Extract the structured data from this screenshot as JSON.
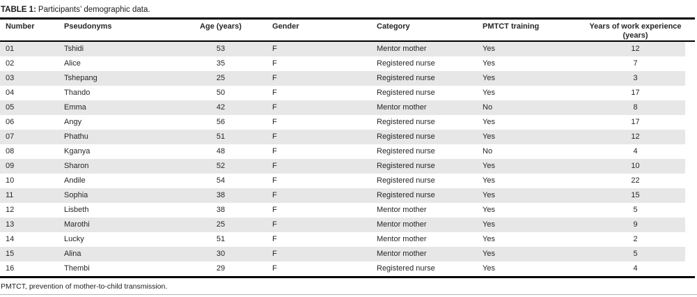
{
  "table": {
    "label": "TABLE 1:",
    "caption": "Participants’ demographic data.",
    "columns": [
      "Number",
      "Pseudonyms",
      "Age (years)",
      "Gender",
      "Category",
      "PMTCT training",
      "Years of work experience (years)"
    ],
    "column_keys": [
      "number",
      "pseudonym",
      "age-years",
      "gender",
      "category",
      "pmtct-training",
      "years-of-work-experience"
    ],
    "rows": [
      [
        "01",
        "Tshidi",
        "53",
        "F",
        "Mentor mother",
        "Yes",
        "12"
      ],
      [
        "02",
        "Alice",
        "35",
        "F",
        "Registered nurse",
        "Yes",
        "7"
      ],
      [
        "03",
        "Tshepang",
        "25",
        "F",
        "Registered nurse",
        "Yes",
        "3"
      ],
      [
        "04",
        "Thando",
        "50",
        "F",
        "Registered nurse",
        "Yes",
        "17"
      ],
      [
        "05",
        "Emma",
        "42",
        "F",
        "Mentor mother",
        "No",
        "8"
      ],
      [
        "06",
        "Angy",
        "56",
        "F",
        "Registered nurse",
        "Yes",
        "17"
      ],
      [
        "07",
        "Phathu",
        "51",
        "F",
        "Registered nurse",
        "Yes",
        "12"
      ],
      [
        "08",
        "Kganya",
        "48",
        "F",
        "Registered nurse",
        "No",
        "4"
      ],
      [
        "09",
        "Sharon",
        "52",
        "F",
        "Registered nurse",
        "Yes",
        "10"
      ],
      [
        "10",
        "Andile",
        "54",
        "F",
        "Registered nurse",
        "Yes",
        "22"
      ],
      [
        "11",
        "Sophia",
        "38",
        "F",
        "Registered nurse",
        "Yes",
        "15"
      ],
      [
        "12",
        "Lisbeth",
        "38",
        "F",
        "Mentor mother",
        "Yes",
        "5"
      ],
      [
        "13",
        "Marothi",
        "25",
        "F",
        "Mentor mother",
        "Yes",
        "9"
      ],
      [
        "14",
        "Lucky",
        "51",
        "F",
        "Mentor mother",
        "Yes",
        "2"
      ],
      [
        "15",
        "Alina",
        "30",
        "F",
        "Mentor mother",
        "Yes",
        "5"
      ],
      [
        "16",
        "Thembi",
        "29",
        "F",
        "Registered nurse",
        "Yes",
        "4"
      ]
    ],
    "footnote": "PMTCT, prevention of mother-to-child transmission.",
    "colors": {
      "stripe": "#e7e7e7",
      "rule": "#000000",
      "text": "#262626",
      "bottom_rule": "#b5b5b5"
    }
  }
}
